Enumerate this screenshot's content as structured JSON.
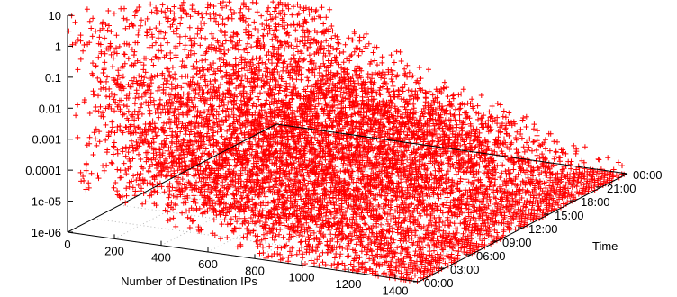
{
  "chart_data": {
    "type": "scatter",
    "plot_style": "3d-scatter-points",
    "point_marker": "+",
    "point_color": "#ff0000",
    "log_scale_z": true,
    "grid": true,
    "x": {
      "label": "Number of Destination IPs",
      "range": [
        0,
        1500
      ],
      "ticks": [
        {
          "value": 0,
          "label": "0"
        },
        {
          "value": 200,
          "label": "200"
        },
        {
          "value": 400,
          "label": "400"
        },
        {
          "value": 600,
          "label": "600"
        },
        {
          "value": 800,
          "label": "800"
        },
        {
          "value": 1000,
          "label": "1000"
        },
        {
          "value": 1200,
          "label": "1200"
        },
        {
          "value": 1400,
          "label": "1400"
        }
      ]
    },
    "y": {
      "label": "Time",
      "range": [
        "00:00",
        "24:00"
      ],
      "ticks": [
        {
          "value": 0,
          "label": "00:00"
        },
        {
          "value": 3,
          "label": "03:00"
        },
        {
          "value": 6,
          "label": "06:00"
        },
        {
          "value": 9,
          "label": "09:00"
        },
        {
          "value": 12,
          "label": "12:00"
        },
        {
          "value": 15,
          "label": "15:00"
        },
        {
          "value": 18,
          "label": "18:00"
        },
        {
          "value": 21,
          "label": "21:00"
        },
        {
          "value": 24,
          "label": "00:00"
        }
      ]
    },
    "z": {
      "range": [
        1e-06,
        10
      ],
      "ticks": [
        {
          "value": 10,
          "label": "10"
        },
        {
          "value": 1,
          "label": "1"
        },
        {
          "value": 0.1,
          "label": "0.1"
        },
        {
          "value": 0.01,
          "label": "0.01"
        },
        {
          "value": 0.001,
          "label": "0.001"
        },
        {
          "value": 0.0001,
          "label": "0.0001"
        },
        {
          "value": 1e-05,
          "label": "1e-05"
        },
        {
          "value": 1e-06,
          "label": "1e-06"
        }
      ]
    }
  }
}
